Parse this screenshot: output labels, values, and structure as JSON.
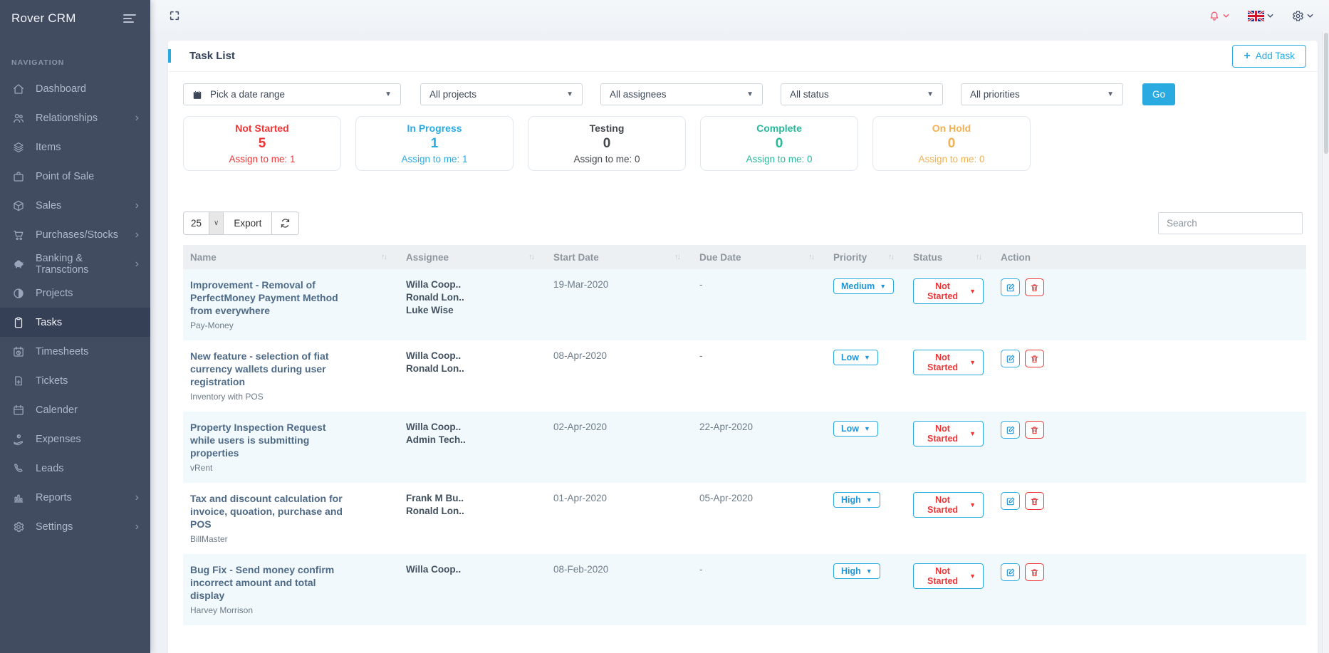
{
  "app": {
    "brand": "Rover CRM"
  },
  "sidebar": {
    "section": "NAVIGATION",
    "items": [
      {
        "id": "dashboard",
        "label": "Dashboard",
        "icon": "home-icon",
        "expandable": false,
        "active": false
      },
      {
        "id": "relationships",
        "label": "Relationships",
        "icon": "users-icon",
        "expandable": true,
        "active": false
      },
      {
        "id": "items",
        "label": "Items",
        "icon": "layers-icon",
        "expandable": false,
        "active": false
      },
      {
        "id": "point-of-sale",
        "label": "Point of Sale",
        "icon": "briefcase-icon",
        "expandable": false,
        "active": false
      },
      {
        "id": "sales",
        "label": "Sales",
        "icon": "cube-icon",
        "expandable": true,
        "active": false
      },
      {
        "id": "purchases-stocks",
        "label": "Purchases/Stocks",
        "icon": "cart-icon",
        "expandable": true,
        "active": false
      },
      {
        "id": "banking-transactions",
        "label": "Banking & Transctions",
        "icon": "piggy-bank-icon",
        "expandable": true,
        "active": false
      },
      {
        "id": "projects",
        "label": "Projects",
        "icon": "contrast-icon",
        "expandable": false,
        "active": false
      },
      {
        "id": "tasks",
        "label": "Tasks",
        "icon": "clipboard-icon",
        "expandable": false,
        "active": true
      },
      {
        "id": "timesheets",
        "label": "Timesheets",
        "icon": "calendar-clock-icon",
        "expandable": false,
        "active": false
      },
      {
        "id": "tickets",
        "label": "Tickets",
        "icon": "file-plus-icon",
        "expandable": false,
        "active": false
      },
      {
        "id": "calender",
        "label": "Calender",
        "icon": "calendar-icon",
        "expandable": false,
        "active": false
      },
      {
        "id": "expenses",
        "label": "Expenses",
        "icon": "hand-coin-icon",
        "expandable": false,
        "active": false
      },
      {
        "id": "leads",
        "label": "Leads",
        "icon": "phone-icon",
        "expandable": false,
        "active": false
      },
      {
        "id": "reports",
        "label": "Reports",
        "icon": "bar-chart-icon",
        "expandable": true,
        "active": false
      },
      {
        "id": "settings",
        "label": "Settings",
        "icon": "gear-icon",
        "expandable": true,
        "active": false
      }
    ]
  },
  "page": {
    "title": "Task List",
    "add_task": "Add Task"
  },
  "filters": {
    "date_range_placeholder": "Pick a date range",
    "selects": [
      {
        "id": "projects",
        "value": "All projects"
      },
      {
        "id": "assignees",
        "value": "All assignees"
      },
      {
        "id": "status",
        "value": "All status"
      },
      {
        "id": "priorities",
        "value": "All priorities"
      }
    ],
    "go": "Go"
  },
  "summary_cards": [
    {
      "label": "Not Started",
      "count": "5",
      "assign": "Assign to me: 1",
      "color": "#ee3535"
    },
    {
      "label": "In Progress",
      "count": "1",
      "assign": "Assign to me: 1",
      "color": "#29abe2"
    },
    {
      "label": "Testing",
      "count": "0",
      "assign": "Assign to me: 0",
      "color": "#43484d"
    },
    {
      "label": "Complete",
      "count": "0",
      "assign": "Assign to me: 0",
      "color": "#26b99a"
    },
    {
      "label": "On Hold",
      "count": "0",
      "assign": "Assign to me: 0",
      "color": "#f0b153"
    }
  ],
  "toolbar": {
    "page_size": "25",
    "export": "Export",
    "search_placeholder": "Search"
  },
  "table": {
    "columns": [
      "Name",
      "Assignee",
      "Start Date",
      "Due Date",
      "Priority",
      "Status",
      "Action"
    ],
    "rows": [
      {
        "name": "Improvement - Removal of PerfectMoney Payment Method from everywhere",
        "project": "Pay-Money",
        "assignees": [
          "Willa Coop..",
          "Ronald Lon..",
          "Luke Wise"
        ],
        "start": "19-Mar-2020",
        "due": "-",
        "priority": "Medium",
        "status": "Not Started"
      },
      {
        "name": "New feature - selection of fiat currency wallets during user registration",
        "project": "Inventory with POS",
        "assignees": [
          "Willa Coop..",
          "Ronald Lon.."
        ],
        "start": "08-Apr-2020",
        "due": "-",
        "priority": "Low",
        "status": "Not Started"
      },
      {
        "name": "Property Inspection Request while users is submitting properties",
        "project": "vRent",
        "assignees": [
          "Willa Coop..",
          "Admin Tech.."
        ],
        "start": "02-Apr-2020",
        "due": "22-Apr-2020",
        "priority": "Low",
        "status": "Not Started"
      },
      {
        "name": "Tax and discount calculation for invoice, quoation, purchase and POS",
        "project": "BillMaster",
        "assignees": [
          "Frank M Bu..",
          "Ronald Lon.."
        ],
        "start": "01-Apr-2020",
        "due": "05-Apr-2020",
        "priority": "High",
        "status": "Not Started"
      },
      {
        "name": "Bug Fix - Send money confirm incorrect amount and total display",
        "project": "Harvey Morrison",
        "assignees": [
          "Willa Coop.."
        ],
        "start": "08-Feb-2020",
        "due": "-",
        "priority": "High",
        "status": "Not Started"
      }
    ]
  },
  "colors": {
    "primary": "#29abe2",
    "danger": "#ee3535",
    "success": "#26b99a",
    "warning": "#f0b153",
    "dark": "#43484d"
  }
}
